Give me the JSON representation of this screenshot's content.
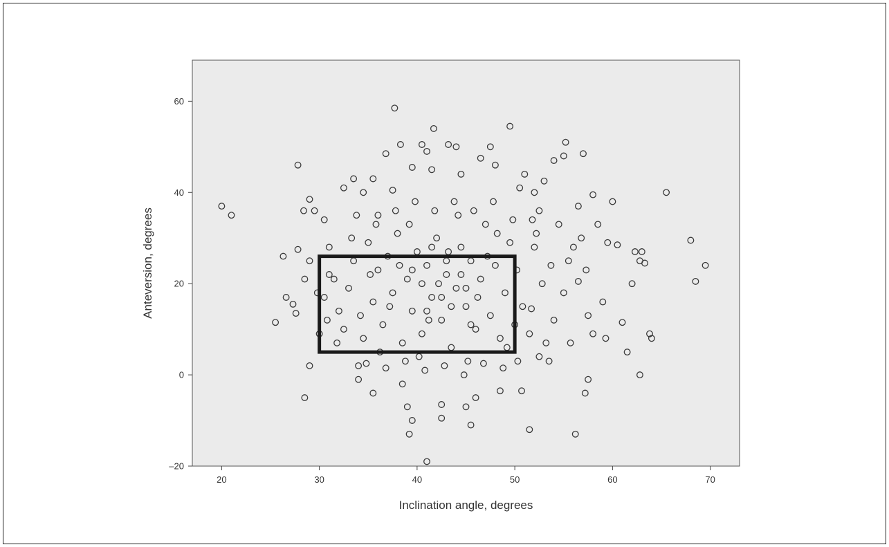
{
  "chart_data": {
    "type": "scatter",
    "title": "",
    "xlabel": "Inclination angle, degrees",
    "ylabel": "Anteversion, degrees",
    "xlim": [
      17,
      73
    ],
    "ylim": [
      -20,
      69
    ],
    "xticks": [
      20,
      30,
      40,
      50,
      60,
      70
    ],
    "yticks": [
      -20,
      0,
      20,
      40,
      60
    ],
    "xtick_labels": [
      "20",
      "30",
      "40",
      "50",
      "60",
      "70"
    ],
    "ytick_labels": [
      "–20",
      "0",
      "20",
      "40",
      "60"
    ],
    "grid": false,
    "marker": "open-circle",
    "colors": {
      "plot_background": "#ebebeb",
      "marker": "#3a3a3a",
      "box": "#1a1a1a"
    },
    "target_zone": {
      "x_range": [
        30,
        50
      ],
      "y_range": [
        5,
        26
      ]
    },
    "points": [
      [
        20,
        37
      ],
      [
        21,
        35
      ],
      [
        25.5,
        11.5
      ],
      [
        26.3,
        26
      ],
      [
        26.6,
        17
      ],
      [
        27.3,
        15.5
      ],
      [
        27.6,
        13.5
      ],
      [
        27.8,
        27.5
      ],
      [
        27.8,
        46
      ],
      [
        28.4,
        36
      ],
      [
        28.5,
        -5
      ],
      [
        29,
        38.5
      ],
      [
        29.5,
        36
      ],
      [
        29,
        2
      ],
      [
        30,
        9
      ],
      [
        30.5,
        34
      ],
      [
        31,
        28
      ],
      [
        31.8,
        7
      ],
      [
        32.5,
        41
      ],
      [
        33.5,
        43
      ],
      [
        34,
        2
      ],
      [
        34,
        -1
      ],
      [
        34.5,
        40
      ],
      [
        35.5,
        43
      ],
      [
        36,
        35
      ],
      [
        35.5,
        -4
      ],
      [
        36.8,
        48.5
      ],
      [
        37.7,
        58.5
      ],
      [
        38.3,
        50.5
      ],
      [
        37.5,
        40.5
      ],
      [
        38.5,
        -2
      ],
      [
        39,
        -7
      ],
      [
        39.2,
        -13
      ],
      [
        39.5,
        -10
      ],
      [
        39.5,
        45.5
      ],
      [
        40.5,
        50.5
      ],
      [
        41,
        49
      ],
      [
        41,
        -19
      ],
      [
        41.7,
        54
      ],
      [
        41.5,
        45
      ],
      [
        42.5,
        -6.5
      ],
      [
        42.5,
        -9.5
      ],
      [
        43.2,
        50.5
      ],
      [
        44,
        50
      ],
      [
        44.5,
        44
      ],
      [
        45,
        -7
      ],
      [
        45.5,
        -11
      ],
      [
        46,
        -5
      ],
      [
        46.5,
        47.5
      ],
      [
        47.5,
        50
      ],
      [
        48,
        46
      ],
      [
        48.5,
        -3.5
      ],
      [
        49.5,
        54.5
      ],
      [
        50.5,
        41
      ],
      [
        51,
        44
      ],
      [
        50.7,
        -3.5
      ],
      [
        51.5,
        -12
      ],
      [
        52,
        40
      ],
      [
        53,
        42.5
      ],
      [
        54,
        47
      ],
      [
        55,
        48
      ],
      [
        55.2,
        51
      ],
      [
        55.7,
        7
      ],
      [
        56.2,
        -13
      ],
      [
        56.5,
        37
      ],
      [
        57,
        48.5
      ],
      [
        57.2,
        -4
      ],
      [
        57.5,
        -1
      ],
      [
        58,
        39.5
      ],
      [
        59.5,
        29
      ],
      [
        60,
        38
      ],
      [
        60.5,
        28.5
      ],
      [
        61,
        11.5
      ],
      [
        61.5,
        5
      ],
      [
        62,
        20
      ],
      [
        62.3,
        27
      ],
      [
        62.8,
        25
      ],
      [
        63,
        27
      ],
      [
        62.8,
        0
      ],
      [
        63.3,
        24.5
      ],
      [
        63.8,
        9
      ],
      [
        64,
        8
      ],
      [
        65.5,
        40
      ],
      [
        68,
        29.5
      ],
      [
        68.5,
        20.5
      ],
      [
        69.5,
        24
      ],
      [
        59,
        16
      ],
      [
        58,
        9
      ],
      [
        57.5,
        13
      ],
      [
        58.5,
        33
      ],
      [
        59.3,
        8
      ],
      [
        56.5,
        20.5
      ],
      [
        56.8,
        30
      ],
      [
        55.5,
        25
      ],
      [
        54.5,
        33
      ],
      [
        53.2,
        7
      ],
      [
        52.5,
        36
      ],
      [
        54,
        12
      ],
      [
        53.5,
        3
      ],
      [
        52,
        28
      ],
      [
        52.8,
        20
      ],
      [
        51.7,
        14.5
      ],
      [
        51.5,
        9
      ],
      [
        53.7,
        24
      ],
      [
        55,
        18
      ],
      [
        57.3,
        23
      ],
      [
        56,
        28
      ],
      [
        52.2,
        31
      ],
      [
        50.8,
        15
      ],
      [
        52.5,
        4
      ],
      [
        32,
        14
      ],
      [
        33,
        19
      ],
      [
        33.5,
        25
      ],
      [
        34.5,
        8
      ],
      [
        35,
        29
      ],
      [
        35.5,
        16
      ],
      [
        36,
        23
      ],
      [
        36.5,
        11
      ],
      [
        37,
        26
      ],
      [
        37.5,
        18
      ],
      [
        38,
        31
      ],
      [
        38.5,
        7
      ],
      [
        39,
        21
      ],
      [
        39.5,
        14
      ],
      [
        40,
        27
      ],
      [
        40.5,
        9
      ],
      [
        41,
        24
      ],
      [
        41.5,
        17
      ],
      [
        42,
        30
      ],
      [
        42.5,
        12
      ],
      [
        43,
        22
      ],
      [
        43.5,
        6
      ],
      [
        44,
        19
      ],
      [
        44.5,
        28
      ],
      [
        45,
        15
      ],
      [
        45.5,
        25
      ],
      [
        46,
        10
      ],
      [
        46.5,
        21
      ],
      [
        47,
        33
      ],
      [
        47.5,
        13
      ],
      [
        48,
        24
      ],
      [
        48.5,
        8
      ],
      [
        49,
        18
      ],
      [
        49.5,
        29
      ],
      [
        50,
        11
      ],
      [
        31.5,
        21
      ],
      [
        32.5,
        10
      ],
      [
        33.3,
        30
      ],
      [
        34.2,
        13
      ],
      [
        35.2,
        22
      ],
      [
        36.2,
        5
      ],
      [
        37.2,
        15
      ],
      [
        38.2,
        24
      ],
      [
        39.2,
        33
      ],
      [
        40.2,
        4
      ],
      [
        41.2,
        12
      ],
      [
        42.2,
        20
      ],
      [
        43.2,
        27
      ],
      [
        44.2,
        35
      ],
      [
        45.2,
        3
      ],
      [
        46.2,
        17
      ],
      [
        47.2,
        26
      ],
      [
        48.2,
        31
      ],
      [
        49.2,
        6
      ],
      [
        50.2,
        23
      ],
      [
        33.8,
        35
      ],
      [
        35.8,
        33
      ],
      [
        37.8,
        36
      ],
      [
        39.8,
        38
      ],
      [
        41.8,
        36
      ],
      [
        43.8,
        38
      ],
      [
        45.8,
        36
      ],
      [
        47.8,
        38
      ],
      [
        49.8,
        34
      ],
      [
        51.8,
        34
      ],
      [
        34.8,
        2.5
      ],
      [
        36.8,
        1.5
      ],
      [
        38.8,
        3
      ],
      [
        40.8,
        1
      ],
      [
        42.8,
        2
      ],
      [
        44.8,
        0
      ],
      [
        46.8,
        2.5
      ],
      [
        48.8,
        1.5
      ],
      [
        50.3,
        3
      ],
      [
        40.5,
        20
      ],
      [
        42.5,
        17
      ],
      [
        44.5,
        22
      ],
      [
        41,
        14
      ],
      [
        43,
        25
      ],
      [
        45,
        19
      ],
      [
        39.5,
        23
      ],
      [
        41.5,
        28
      ],
      [
        43.5,
        15
      ],
      [
        45.5,
        11
      ],
      [
        30.5,
        17
      ],
      [
        31,
        22
      ],
      [
        30.8,
        12
      ],
      [
        29.8,
        18
      ],
      [
        29,
        25
      ],
      [
        28.5,
        21
      ]
    ]
  }
}
